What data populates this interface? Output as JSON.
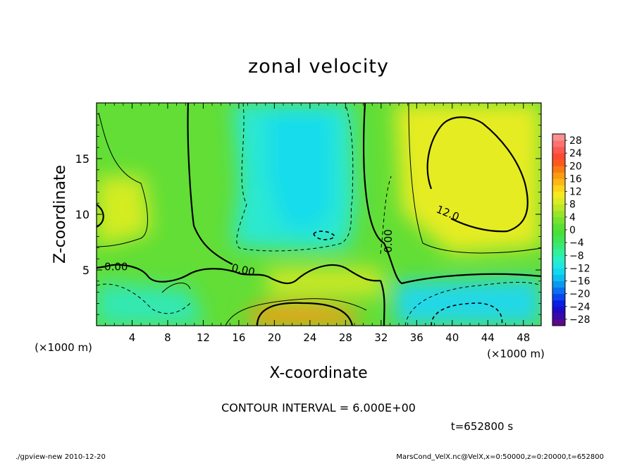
{
  "chart_data": {
    "type": "heatmap",
    "title": "zonal velocity",
    "xlabel": "X-coordinate",
    "ylabel": "Z-coordinate",
    "x_unit": "(×1000 m)",
    "z_unit": "(×1000 m)",
    "xlim": [
      0,
      50
    ],
    "ylim": [
      0,
      20
    ],
    "x_ticks": [
      "4",
      "8",
      "12",
      "16",
      "20",
      "24",
      "28",
      "32",
      "36",
      "40",
      "44",
      "48"
    ],
    "x_tick_values": [
      4,
      8,
      12,
      16,
      20,
      24,
      28,
      32,
      36,
      40,
      44,
      48
    ],
    "y_ticks": [
      "5",
      "10",
      "15"
    ],
    "y_tick_values": [
      5,
      10,
      15
    ],
    "colorbar": {
      "labels": [
        "28",
        "24",
        "20",
        "16",
        "12",
        "8",
        "4",
        "0",
        "−4",
        "−8",
        "−12",
        "−16",
        "−20",
        "−24",
        "−28"
      ],
      "levels": [
        -30,
        -28,
        -26,
        -24,
        -22,
        -20,
        -18,
        -16,
        -14,
        -12,
        -10,
        -8,
        -6,
        -4,
        -2,
        0,
        2,
        4,
        6,
        8,
        10,
        12,
        14,
        16,
        18,
        20,
        22,
        24,
        26,
        28,
        30
      ],
      "colors": [
        "#5a0a8c",
        "#3a0aa6",
        "#1e0ac8",
        "#0a1ee6",
        "#0a46f0",
        "#0a70f0",
        "#0a98f0",
        "#0ac0f0",
        "#12d8f0",
        "#20e8e0",
        "#28f0c0",
        "#30f09a",
        "#36ea78",
        "#40e454",
        "#46e03a",
        "#5ae034",
        "#78e22e",
        "#98e42a",
        "#bce826",
        "#dcec22",
        "#f6ea1e",
        "#fcd41a",
        "#fcb814",
        "#fc9a12",
        "#fc7a14",
        "#fc5a1c",
        "#fc4a30",
        "#fc5a50",
        "#fc7272",
        "#fc9090"
      ]
    },
    "contour_labels": [
      "0.00",
      "0.00",
      "0.00",
      "12.0"
    ],
    "annotations": {
      "contour_interval": "CONTOUR INTERVAL = 6.000E+00",
      "time": "t=652800 s",
      "footer_left": "./gpview-new  2010-12-20",
      "footer_right": "MarsCond_VelX.nc@VelX,x=0:50000,z=0:20000,t=652800"
    },
    "field_features": [
      {
        "x": 20,
        "z": 13,
        "value": -8
      },
      {
        "x": 24,
        "z": 8,
        "value": -12
      },
      {
        "x": 22,
        "z": 1,
        "value": 14
      },
      {
        "x": 43,
        "z": 13,
        "value": 14
      },
      {
        "x": 41,
        "z": 1,
        "value": -18
      },
      {
        "x": 1,
        "z": 10.5,
        "value": 9
      },
      {
        "x": 5,
        "z": 1,
        "value": -5
      },
      {
        "x": 30,
        "z": 4,
        "value": 5
      }
    ]
  }
}
